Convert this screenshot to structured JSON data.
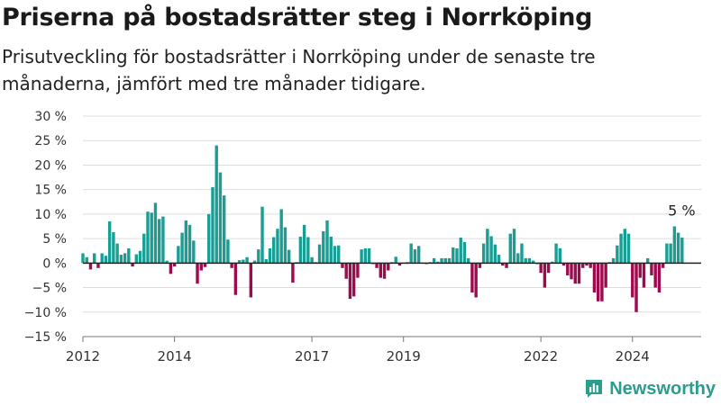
{
  "title": "Priserna på bostadsrätter steg i Norrköping",
  "subtitle": "Prisutveckling för bostadsrätter i Norrköping under de senaste tre månaderna, jämfört med tre månader tidigare.",
  "brand": {
    "name": "Newsworthy",
    "icon": "newsworthy-logo-icon"
  },
  "colors": {
    "positive": "#1a9e94",
    "negative": "#9e0a4e",
    "grid": "#dddddd",
    "axis": "#222222",
    "brand": "#2a9d8f"
  },
  "chart_data": {
    "type": "bar",
    "y_unit": "%",
    "ylim": [
      -15,
      30
    ],
    "yticks": [
      -15,
      -10,
      -5,
      0,
      5,
      10,
      15,
      20,
      25,
      30
    ],
    "x_start": "2012-01",
    "x_end": "2025-07",
    "x_ticks": [
      {
        "date": "2012-01",
        "label": "2012"
      },
      {
        "date": "2014-01",
        "label": "2014"
      },
      {
        "date": "2017-01",
        "label": "2017"
      },
      {
        "date": "2019-01",
        "label": "2019"
      },
      {
        "date": "2022-01",
        "label": "2022"
      },
      {
        "date": "2024-01",
        "label": "2024"
      }
    ],
    "grid": true,
    "annotation": {
      "text": "5 %",
      "date": "2024-12"
    },
    "series": [
      {
        "values": [
          {
            "date": "2012-01",
            "value": 2
          },
          {
            "date": "2012-02",
            "value": 1.2
          },
          {
            "date": "2012-03",
            "value": -1.3
          },
          {
            "date": "2012-04",
            "value": 2
          },
          {
            "date": "2012-05",
            "value": -1
          },
          {
            "date": "2012-06",
            "value": 2
          },
          {
            "date": "2012-07",
            "value": 1.5
          },
          {
            "date": "2012-08",
            "value": 8.5
          },
          {
            "date": "2012-09",
            "value": 6.3
          },
          {
            "date": "2012-10",
            "value": 4
          },
          {
            "date": "2012-11",
            "value": 1.7
          },
          {
            "date": "2012-12",
            "value": 2
          },
          {
            "date": "2013-01",
            "value": 3
          },
          {
            "date": "2013-02",
            "value": -0.7
          },
          {
            "date": "2013-03",
            "value": 1.8
          },
          {
            "date": "2013-04",
            "value": 2.5
          },
          {
            "date": "2013-05",
            "value": 6
          },
          {
            "date": "2013-06",
            "value": 10.5
          },
          {
            "date": "2013-07",
            "value": 10.3
          },
          {
            "date": "2013-08",
            "value": 12.3
          },
          {
            "date": "2013-09",
            "value": 9
          },
          {
            "date": "2013-10",
            "value": 9.5
          },
          {
            "date": "2013-11",
            "value": 0.5
          },
          {
            "date": "2013-12",
            "value": -2.2
          },
          {
            "date": "2014-01",
            "value": -0.7
          },
          {
            "date": "2014-02",
            "value": 3.5
          },
          {
            "date": "2014-03",
            "value": 6.2
          },
          {
            "date": "2014-04",
            "value": 8.7
          },
          {
            "date": "2014-05",
            "value": 7.8
          },
          {
            "date": "2014-06",
            "value": 4.6
          },
          {
            "date": "2014-07",
            "value": -4.2
          },
          {
            "date": "2014-08",
            "value": -1.5
          },
          {
            "date": "2014-09",
            "value": -0.8
          },
          {
            "date": "2014-10",
            "value": 10
          },
          {
            "date": "2014-11",
            "value": 15.5
          },
          {
            "date": "2014-12",
            "value": 24
          },
          {
            "date": "2015-01",
            "value": 18.5
          },
          {
            "date": "2015-02",
            "value": 13.8
          },
          {
            "date": "2015-03",
            "value": 4.8
          },
          {
            "date": "2015-04",
            "value": -1
          },
          {
            "date": "2015-05",
            "value": -6.5
          },
          {
            "date": "2015-06",
            "value": 0.6
          },
          {
            "date": "2015-07",
            "value": 0.7
          },
          {
            "date": "2015-08",
            "value": 1.2
          },
          {
            "date": "2015-09",
            "value": -7
          },
          {
            "date": "2015-10",
            "value": 0.5
          },
          {
            "date": "2015-11",
            "value": 2.8
          },
          {
            "date": "2015-12",
            "value": 11.5
          },
          {
            "date": "2016-01",
            "value": 0.8
          },
          {
            "date": "2016-02",
            "value": 3
          },
          {
            "date": "2016-03",
            "value": 5.3
          },
          {
            "date": "2016-04",
            "value": 7
          },
          {
            "date": "2016-05",
            "value": 11
          },
          {
            "date": "2016-06",
            "value": 7.3
          },
          {
            "date": "2016-07",
            "value": 2.7
          },
          {
            "date": "2016-08",
            "value": -4
          },
          {
            "date": "2016-09",
            "value": 0.2
          },
          {
            "date": "2016-10",
            "value": 5.4
          },
          {
            "date": "2016-11",
            "value": 7.8
          },
          {
            "date": "2016-12",
            "value": 5.3
          },
          {
            "date": "2017-01",
            "value": 1.2
          },
          {
            "date": "2017-02",
            "value": 0.2
          },
          {
            "date": "2017-03",
            "value": 3.8
          },
          {
            "date": "2017-04",
            "value": 6.5
          },
          {
            "date": "2017-05",
            "value": 8.7
          },
          {
            "date": "2017-06",
            "value": 5.4
          },
          {
            "date": "2017-07",
            "value": 3.5
          },
          {
            "date": "2017-08",
            "value": 3.6
          },
          {
            "date": "2017-09",
            "value": -1
          },
          {
            "date": "2017-10",
            "value": -3.2
          },
          {
            "date": "2017-11",
            "value": -7.3
          },
          {
            "date": "2017-12",
            "value": -6.8
          },
          {
            "date": "2018-01",
            "value": -3
          },
          {
            "date": "2018-02",
            "value": 2.8
          },
          {
            "date": "2018-03",
            "value": 3
          },
          {
            "date": "2018-04",
            "value": 3
          },
          {
            "date": "2018-05",
            "value": -0.2
          },
          {
            "date": "2018-06",
            "value": -1
          },
          {
            "date": "2018-07",
            "value": -3
          },
          {
            "date": "2018-08",
            "value": -3.2
          },
          {
            "date": "2018-09",
            "value": -1.5
          },
          {
            "date": "2018-10",
            "value": 0.2
          },
          {
            "date": "2018-11",
            "value": 1.3
          },
          {
            "date": "2018-12",
            "value": -0.5
          },
          {
            "date": "2019-01",
            "value": 0.1
          },
          {
            "date": "2019-02",
            "value": 0.2
          },
          {
            "date": "2019-03",
            "value": 4
          },
          {
            "date": "2019-04",
            "value": 2.8
          },
          {
            "date": "2019-05",
            "value": 3.5
          },
          {
            "date": "2019-06",
            "value": 0.1
          },
          {
            "date": "2019-07",
            "value": -0.2
          },
          {
            "date": "2019-08",
            "value": 0.2
          },
          {
            "date": "2019-09",
            "value": 1
          },
          {
            "date": "2019-10",
            "value": 0.3
          },
          {
            "date": "2019-11",
            "value": 1
          },
          {
            "date": "2019-12",
            "value": 1
          },
          {
            "date": "2020-01",
            "value": 1
          },
          {
            "date": "2020-02",
            "value": 3.2
          },
          {
            "date": "2020-03",
            "value": 3
          },
          {
            "date": "2020-04",
            "value": 5.2
          },
          {
            "date": "2020-05",
            "value": 4.3
          },
          {
            "date": "2020-06",
            "value": 1
          },
          {
            "date": "2020-07",
            "value": -6
          },
          {
            "date": "2020-08",
            "value": -7
          },
          {
            "date": "2020-09",
            "value": -1
          },
          {
            "date": "2020-10",
            "value": 4
          },
          {
            "date": "2020-11",
            "value": 7
          },
          {
            "date": "2020-12",
            "value": 5.5
          },
          {
            "date": "2021-01",
            "value": 3.8
          },
          {
            "date": "2021-02",
            "value": 1.7
          },
          {
            "date": "2021-03",
            "value": -0.5
          },
          {
            "date": "2021-04",
            "value": -1
          },
          {
            "date": "2021-05",
            "value": 6
          },
          {
            "date": "2021-06",
            "value": 7
          },
          {
            "date": "2021-07",
            "value": 2
          },
          {
            "date": "2021-08",
            "value": 4
          },
          {
            "date": "2021-09",
            "value": 1
          },
          {
            "date": "2021-10",
            "value": 1
          },
          {
            "date": "2021-11",
            "value": 0.5
          },
          {
            "date": "2021-12",
            "value": -0.2
          },
          {
            "date": "2022-01",
            "value": -2
          },
          {
            "date": "2022-02",
            "value": -5
          },
          {
            "date": "2022-03",
            "value": -2
          },
          {
            "date": "2022-04",
            "value": 0.3
          },
          {
            "date": "2022-05",
            "value": 4
          },
          {
            "date": "2022-06",
            "value": 3
          },
          {
            "date": "2022-07",
            "value": -0.5
          },
          {
            "date": "2022-08",
            "value": -2.5
          },
          {
            "date": "2022-09",
            "value": -3.3
          },
          {
            "date": "2022-10",
            "value": -4.2
          },
          {
            "date": "2022-11",
            "value": -4.2
          },
          {
            "date": "2022-12",
            "value": -1
          },
          {
            "date": "2023-01",
            "value": -0.5
          },
          {
            "date": "2023-02",
            "value": -1
          },
          {
            "date": "2023-03",
            "value": -6
          },
          {
            "date": "2023-04",
            "value": -7.8
          },
          {
            "date": "2023-05",
            "value": -7.8
          },
          {
            "date": "2023-06",
            "value": -5
          },
          {
            "date": "2023-07",
            "value": 0.2
          },
          {
            "date": "2023-08",
            "value": 1
          },
          {
            "date": "2023-09",
            "value": 3.6
          },
          {
            "date": "2023-10",
            "value": 6
          },
          {
            "date": "2023-11",
            "value": 7
          },
          {
            "date": "2023-12",
            "value": 6
          },
          {
            "date": "2024-01",
            "value": -7
          },
          {
            "date": "2024-02",
            "value": -10
          },
          {
            "date": "2024-03",
            "value": -3
          },
          {
            "date": "2024-04",
            "value": -5
          },
          {
            "date": "2024-05",
            "value": 1
          },
          {
            "date": "2024-06",
            "value": -2.5
          },
          {
            "date": "2024-07",
            "value": -5
          },
          {
            "date": "2024-08",
            "value": -6
          },
          {
            "date": "2024-09",
            "value": -1
          },
          {
            "date": "2024-10",
            "value": 4
          },
          {
            "date": "2024-11",
            "value": 4
          },
          {
            "date": "2024-12",
            "value": 7.5
          },
          {
            "date": "2025-01",
            "value": 6.2
          },
          {
            "date": "2025-02",
            "value": 5.2
          }
        ]
      }
    ]
  }
}
